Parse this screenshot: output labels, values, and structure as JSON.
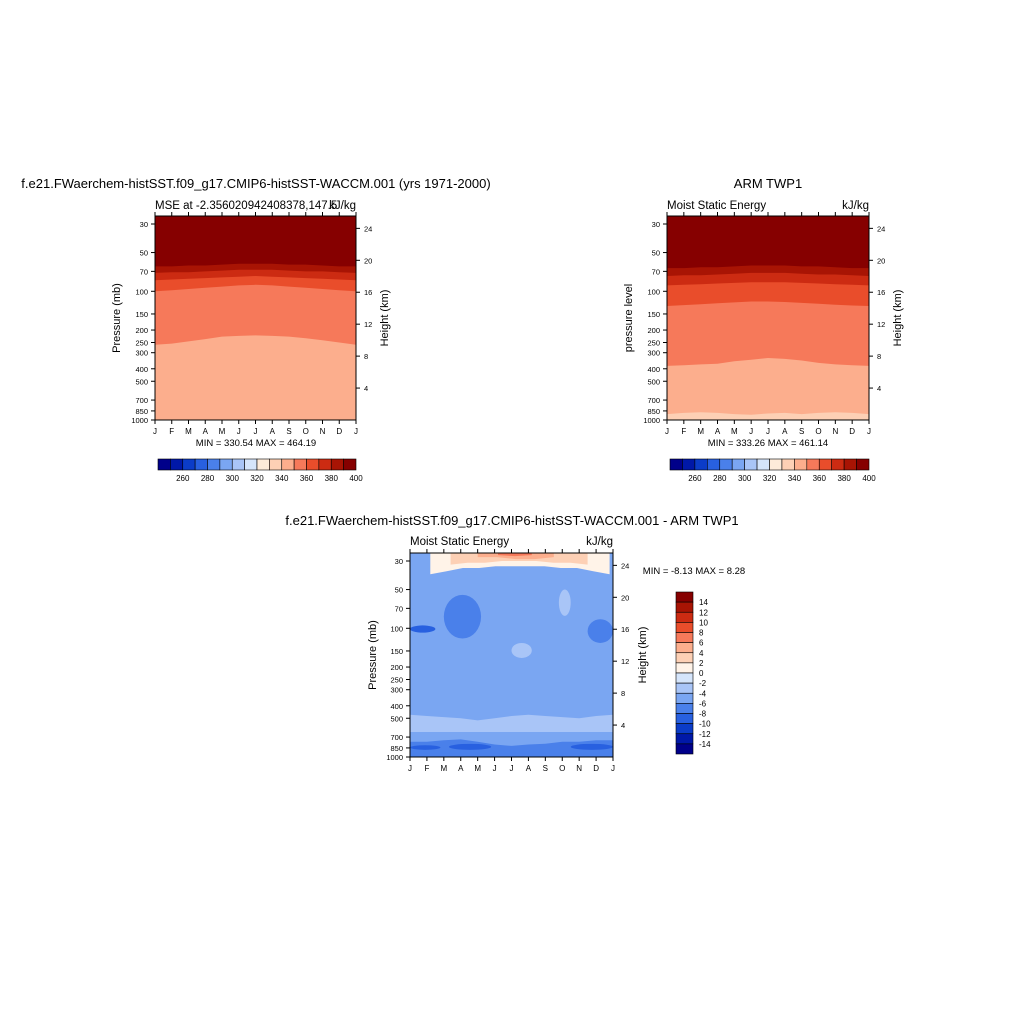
{
  "chart_data": [
    {
      "type": "contour",
      "title": "f.e21.FWaerchem-histSST.f09_g17.CMIP6-histSST-WACCM.001 (yrs 1971-2000)",
      "left_subtitle": "MSE at -2.356020942408378,147.5",
      "right_subtitle": "kJ/kg",
      "ylabel": "Pressure (mb)",
      "ylabel_right": "Height (km)",
      "x_ticks": [
        "J",
        "F",
        "M",
        "A",
        "M",
        "J",
        "J",
        "A",
        "S",
        "O",
        "N",
        "D",
        "J"
      ],
      "pressure_ticks": [
        "30",
        "50",
        "70",
        "100",
        "150",
        "200",
        "250",
        "300",
        "400",
        "500",
        "700",
        "850",
        "1000"
      ],
      "height_ticks": [
        "24",
        "20",
        "16",
        "12",
        "8",
        "4"
      ],
      "minmax_label": "MIN = 330.54 MAX = 464.19",
      "min": 330.54,
      "max": 464.19,
      "boundaries_mb": [
        {
          "level": 350,
          "values": [
            260,
            255,
            245,
            235,
            225,
            222,
            220,
            222,
            225,
            232,
            240,
            250,
            260
          ]
        },
        {
          "level": 360,
          "values": [
            100,
            98,
            96,
            94,
            92,
            90,
            89,
            90,
            92,
            94,
            96,
            98,
            100
          ]
        },
        {
          "level": 370,
          "values": [
            82,
            81,
            80,
            79,
            78,
            77,
            76,
            77,
            78,
            79,
            80,
            81,
            82
          ]
        },
        {
          "level": 380,
          "values": [
            72,
            71,
            71,
            70,
            69,
            68,
            68,
            68,
            69,
            70,
            70,
            71,
            72
          ]
        },
        {
          "level": 390,
          "values": [
            64,
            64,
            63,
            63,
            62,
            61,
            61,
            61,
            62,
            62,
            63,
            64,
            64
          ]
        },
        {
          "level": 400,
          "values": [
            57,
            57,
            57,
            56,
            56,
            55,
            55,
            55,
            56,
            56,
            56,
            57,
            57
          ]
        }
      ]
    },
    {
      "type": "contour",
      "title": "ARM TWP1",
      "left_subtitle": "Moist Static Energy",
      "right_subtitle": "kJ/kg",
      "ylabel": "pressure level",
      "ylabel_right": "Height (km)",
      "x_ticks": [
        "J",
        "F",
        "M",
        "A",
        "M",
        "J",
        "J",
        "A",
        "S",
        "O",
        "N",
        "D",
        "J"
      ],
      "pressure_ticks": [
        "30",
        "50",
        "70",
        "100",
        "150",
        "200",
        "250",
        "300",
        "400",
        "500",
        "700",
        "850",
        "1000"
      ],
      "height_ticks": [
        "24",
        "20",
        "16",
        "12",
        "8",
        "4"
      ],
      "minmax_label": "MIN = 333.26 MAX = 461.14",
      "min": 333.26,
      "max": 461.14,
      "boundaries_mb": [
        {
          "level": 340,
          "values": [
            900,
            880,
            870,
            880,
            900,
            910,
            890,
            880,
            900,
            880,
            870,
            880,
            900
          ]
        },
        {
          "level": 350,
          "values": [
            380,
            375,
            370,
            365,
            350,
            340,
            330,
            335,
            345,
            360,
            370,
            375,
            380
          ]
        },
        {
          "level": 360,
          "values": [
            130,
            128,
            126,
            124,
            122,
            120,
            120,
            121,
            123,
            125,
            127,
            129,
            130
          ]
        },
        {
          "level": 370,
          "values": [
            90,
            89,
            88,
            87,
            86,
            85,
            85,
            85,
            86,
            87,
            88,
            89,
            90
          ]
        },
        {
          "level": 380,
          "values": [
            76,
            75,
            75,
            74,
            73,
            72,
            72,
            72,
            73,
            74,
            74,
            75,
            76
          ]
        },
        {
          "level": 390,
          "values": [
            66,
            66,
            65,
            65,
            64,
            63,
            63,
            63,
            64,
            64,
            65,
            66,
            66
          ]
        },
        {
          "level": 400,
          "values": [
            58,
            58,
            58,
            57,
            57,
            56,
            56,
            56,
            57,
            57,
            57,
            58,
            58
          ]
        }
      ]
    },
    {
      "type": "contour",
      "title": "f.e21.FWaerchem-histSST.f09_g17.CMIP6-histSST-WACCM.001 - ARM TWP1",
      "left_subtitle": "Moist Static Energy",
      "right_subtitle": "kJ/kg",
      "ylabel": "Pressure (mb)",
      "ylabel_right": "Height (km)",
      "x_ticks": [
        "J",
        "F",
        "M",
        "A",
        "M",
        "J",
        "J",
        "A",
        "S",
        "O",
        "N",
        "D",
        "J"
      ],
      "pressure_ticks": [
        "30",
        "50",
        "70",
        "100",
        "150",
        "200",
        "250",
        "300",
        "400",
        "500",
        "700",
        "850",
        "1000"
      ],
      "height_ticks": [
        "24",
        "20",
        "16",
        "12",
        "8",
        "4"
      ],
      "minmax_label": "MIN =  -8.13 MAX =   8.28",
      "min": -8.13,
      "max": 8.28,
      "background_level": -4,
      "regions": [
        {
          "level": 2,
          "mb": [
            [
              26,
              26
            ],
            [
              26,
              26
            ]
          ]
        },
        {
          "level": 0,
          "months": [
            1.2,
            11.8
          ],
          "mb_top": 26,
          "mb_bottom": [
            38,
            36,
            34,
            34,
            33,
            33,
            33,
            33,
            34,
            34,
            36,
            38
          ]
        },
        {
          "level": 2,
          "months": [
            2.4,
            10.5
          ],
          "mb_top": 26,
          "mb_bottom": [
            32,
            31,
            31,
            30,
            30,
            30,
            31,
            31,
            32
          ]
        },
        {
          "level": 4,
          "months": [
            4,
            8.5
          ],
          "mb_top": 26,
          "mb_bottom": [
            28,
            28,
            29,
            29,
            28
          ]
        },
        {
          "level": 6,
          "months": [
            5.2,
            7.2
          ],
          "mb_top": 26,
          "mb_bottom": [
            27,
            27.5,
            27
          ]
        },
        {
          "level": -6,
          "months": [
            2,
            4.2
          ],
          "mb_top": 55,
          "mb_bottom": 120
        },
        {
          "level": -8,
          "months": [
            0,
            1.5
          ],
          "mb_top": 95,
          "mb_bottom": 108
        },
        {
          "level": -6,
          "months": [
            10.5,
            12
          ],
          "mb_top": 85,
          "mb_bottom": 130
        },
        {
          "level": -2,
          "months": [
            6,
            7.2
          ],
          "mb_top": 130,
          "mb_bottom": 170
        },
        {
          "level": -2,
          "months": [
            8.8,
            9.5
          ],
          "mb_top": 50,
          "mb_bottom": 80
        },
        {
          "level": -2,
          "months": [
            0,
            12
          ],
          "mb_top_curve": [
            470,
            480,
            490,
            500,
            520,
            500,
            480,
            470,
            480,
            490,
            500,
            480,
            470
          ],
          "mb_bottom": 640
        },
        {
          "level": -6,
          "months": [
            0,
            12
          ],
          "mb_top_curve": [
            760,
            760,
            740,
            730,
            760,
            800,
            820,
            800,
            790,
            760,
            760,
            740,
            740
          ],
          "mb_bottom": 1000
        },
        {
          "level": -8,
          "months": [
            0,
            1.8
          ],
          "mb_top": 810,
          "mb_bottom": 880
        },
        {
          "level": -8,
          "months": [
            2.3,
            4.8
          ],
          "mb_top": 790,
          "mb_bottom": 880
        },
        {
          "level": -8,
          "months": [
            9.5,
            12
          ],
          "mb_top": 790,
          "mb_bottom": 880
        }
      ]
    }
  ],
  "colorbars": {
    "absolute": {
      "tick_labels": [
        "260",
        "280",
        "300",
        "320",
        "340",
        "360",
        "380",
        "400"
      ],
      "levels": [
        250,
        260,
        270,
        280,
        290,
        300,
        310,
        320,
        330,
        340,
        350,
        360,
        370,
        380,
        390,
        400
      ],
      "colors": [
        "#00008a",
        "#0018a8",
        "#0b3cc8",
        "#2860e0",
        "#4a80ea",
        "#7aa6f2",
        "#a9c5f7",
        "#d5e5fb",
        "#fdebd9",
        "#fdd0b5",
        "#fcae8d",
        "#f6795a",
        "#e94d2b",
        "#cc2b12",
        "#a81404",
        "#860000"
      ]
    },
    "difference": {
      "tick_labels": [
        "14",
        "12",
        "10",
        "8",
        "6",
        "4",
        "2",
        "0",
        "-2",
        "-4",
        "-6",
        "-8",
        "-10",
        "-12",
        "-14"
      ],
      "levels": [
        -14,
        -12,
        -10,
        -8,
        -6,
        -4,
        -2,
        0,
        2,
        4,
        6,
        8,
        10,
        12,
        14
      ],
      "colors": [
        "#00008a",
        "#0018a8",
        "#0b3cc8",
        "#2860e0",
        "#4a80ea",
        "#7aa6f2",
        "#a9c5f7",
        "#d5e5fb",
        "#fff3e8",
        "#fdd0b5",
        "#fcae8d",
        "#f6795a",
        "#e94d2b",
        "#cc2b12",
        "#a81404",
        "#860000"
      ]
    }
  }
}
